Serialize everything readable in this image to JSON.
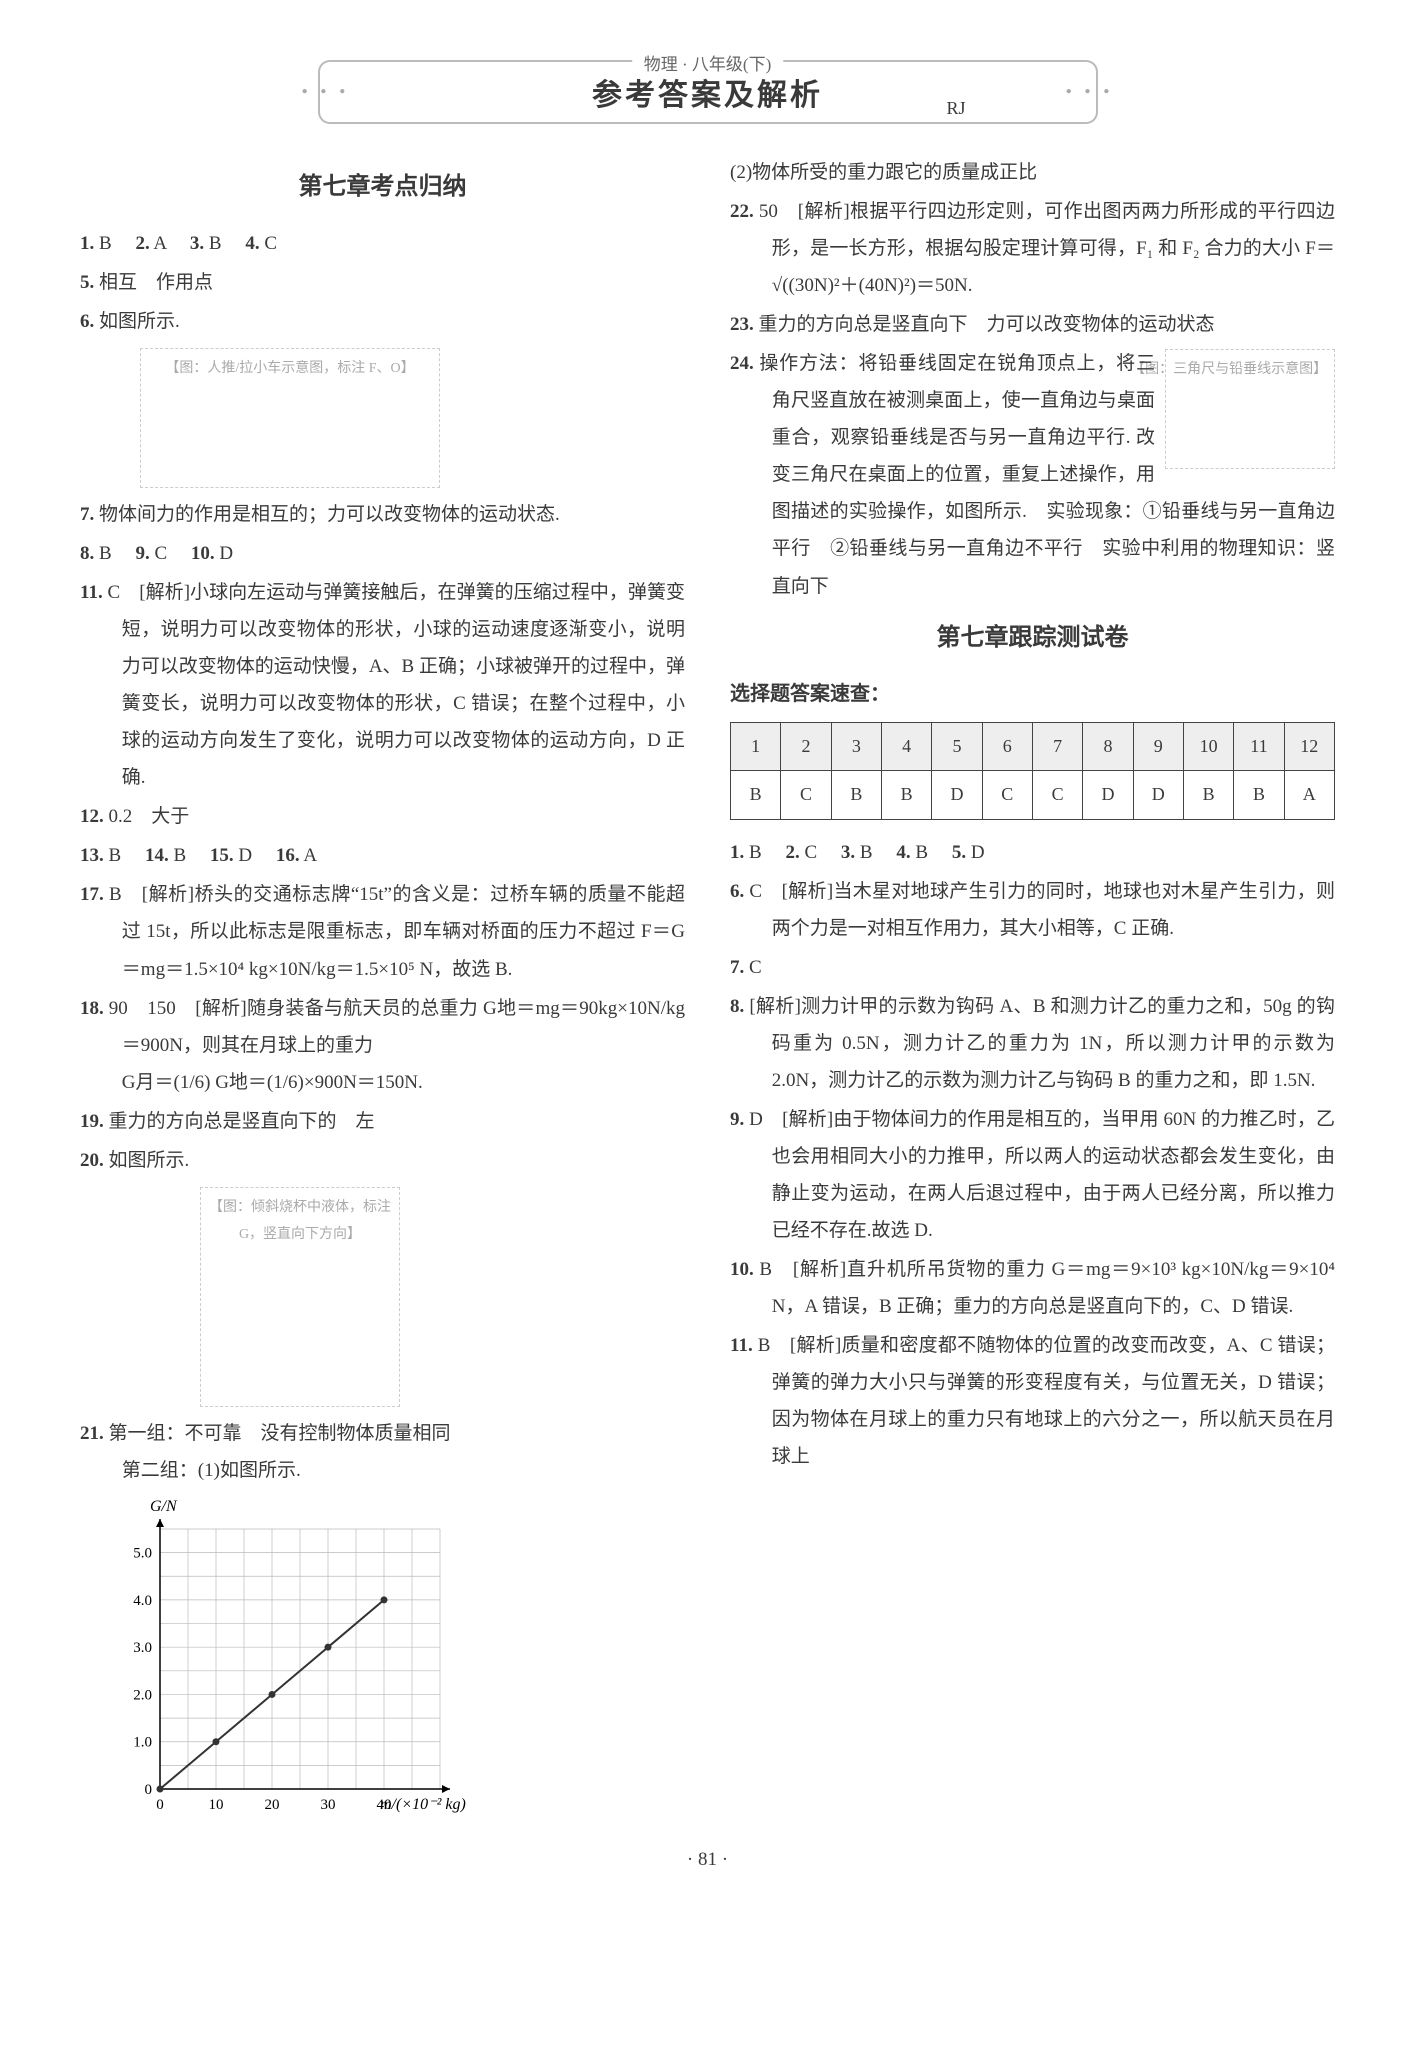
{
  "colors": {
    "text": "#3a3a3a",
    "border": "#bbbbbb",
    "grid": "#eeeeee",
    "background": "#ffffff"
  },
  "header": {
    "subject": "物理 · 八年级(下)",
    "title": "参考答案及解析",
    "edition": "RJ"
  },
  "left": {
    "section_title": "第七章考点归纳",
    "line1": {
      "a1n": "1.",
      "a1": "B",
      "a2n": "2.",
      "a2": "A",
      "a3n": "3.",
      "a3": "B",
      "a4n": "4.",
      "a4": "C"
    },
    "l5": {
      "n": "5.",
      "t": "相互　作用点"
    },
    "l6": {
      "n": "6.",
      "t": "如图所示."
    },
    "fig_cart": "【图：人推/拉小车示意图，标注 F、O】",
    "l7": {
      "n": "7.",
      "t": "物体间力的作用是相互的；力可以改变物体的运动状态."
    },
    "line8": {
      "a1n": "8.",
      "a1": "B",
      "a2n": "9.",
      "a2": "C",
      "a3n": "10.",
      "a3": "D"
    },
    "l11": {
      "n": "11.",
      "t": "C　[解析]小球向左运动与弹簧接触后，在弹簧的压缩过程中，弹簧变短，说明力可以改变物体的形状，小球的运动速度逐渐变小，说明力可以改变物体的运动快慢，A、B 正确；小球被弹开的过程中，弹簧变长，说明力可以改变物体的形状，C 错误；在整个过程中，小球的运动方向发生了变化，说明力可以改变物体的运动方向，D 正确."
    },
    "l12": {
      "n": "12.",
      "t": "0.2　大于"
    },
    "line13": {
      "a1n": "13.",
      "a1": "B",
      "a2n": "14.",
      "a2": "B",
      "a3n": "15.",
      "a3": "D",
      "a4n": "16.",
      "a4": "A"
    },
    "l17": {
      "n": "17.",
      "t": "B　[解析]桥头的交通标志牌“15t”的含义是：过桥车辆的质量不能超过 15t，所以此标志是限重标志，即车辆对桥面的压力不超过 F＝G＝mg＝1.5×10⁴ kg×10N/kg＝1.5×10⁵ N，故选 B."
    },
    "l18": {
      "n": "18.",
      "pre": "90　150　[解析]随身装备与航天员的总重力 G地＝mg＝90kg×10N/kg＝900N，则其在月球上的重力",
      "frac": "G月＝(1/6) G地＝(1/6)×900N＝150N."
    },
    "l19": {
      "n": "19.",
      "t": "重力的方向总是竖直向下的　左"
    },
    "l20": {
      "n": "20.",
      "t": "如图所示."
    },
    "fig_beaker": "【图：倾斜烧杯中液体，标注 G，竖直向下方向】",
    "l21": {
      "n": "21.",
      "a": "第一组：不可靠　没有控制物体质量相同",
      "b": "第二组：(1)如图所示."
    },
    "graph": {
      "ylabel": "G/N",
      "xlabel": "m/(×10⁻² kg)",
      "yticks": [
        "0",
        "1.0",
        "2.0",
        "3.0",
        "4.0",
        "5.0"
      ],
      "xticks": [
        "0",
        "10",
        "20",
        "30",
        "40"
      ],
      "xlim": [
        0,
        50
      ],
      "ylim": [
        0,
        5.5
      ],
      "line_color": "#333333",
      "grid_color": "#bbbbbb",
      "points": [
        [
          0,
          0
        ],
        [
          10,
          1.0
        ],
        [
          20,
          2.0
        ],
        [
          30,
          3.0
        ],
        [
          40,
          4.0
        ]
      ]
    }
  },
  "right": {
    "p1": "(2)物体所受的重力跟它的质量成正比",
    "l22": {
      "n": "22.",
      "t": "50　[解析]根据平行四边形定则，可作出图丙两力所形成的平行四边形，是一长方形，根据勾股定理计算可得，F₁ 和 F₂ 合力的大小 F＝√((30N)²＋(40N)²)＝50N."
    },
    "l23": {
      "n": "23.",
      "t": "重力的方向总是竖直向下　力可以改变物体的运动状态"
    },
    "l24": {
      "n": "24.",
      "pre": "操作方法：将铅垂线固定在锐角顶点上，将三角尺竖直放在被测桌面上，使一直角边与桌面重合，观察铅垂线是否与另一直角边平行.",
      "post": "改变三角尺在桌面上的位置，重复上述操作，用图描述的实验操作，如图所示.　实验现象：①铅垂线与另一直角边平行　②铅垂线与另一直角边不平行　实验中利用的物理知识：竖直向下"
    },
    "fig_tri": "【图：三角尺与铅垂线示意图】",
    "section2_title": "第七章跟踪测试卷",
    "table_head": "选择题答案速查：",
    "table": {
      "nums": [
        "1",
        "2",
        "3",
        "4",
        "5",
        "6",
        "7",
        "8",
        "9",
        "10",
        "11",
        "12"
      ],
      "ans": [
        "B",
        "C",
        "B",
        "B",
        "D",
        "C",
        "C",
        "D",
        "D",
        "B",
        "B",
        "A"
      ]
    },
    "lineA": {
      "a1n": "1.",
      "a1": "B",
      "a2n": "2.",
      "a2": "C",
      "a3n": "3.",
      "a3": "B",
      "a4n": "4.",
      "a4": "B",
      "a5n": "5.",
      "a5": "D"
    },
    "l6r": {
      "n": "6.",
      "t": "C　[解析]当木星对地球产生引力的同时，地球也对木星产生引力，则两个力是一对相互作用力，其大小相等，C 正确."
    },
    "l7r": {
      "n": "7.",
      "t": "C"
    },
    "l8r": {
      "n": "8.",
      "t": "[解析]测力计甲的示数为钩码 A、B 和测力计乙的重力之和，50g 的钩码重为 0.5N，测力计乙的重力为 1N，所以测力计甲的示数为 2.0N，测力计乙的示数为测力计乙与钩码 B 的重力之和，即 1.5N."
    },
    "l9r": {
      "n": "9.",
      "t": "D　[解析]由于物体间力的作用是相互的，当甲用 60N 的力推乙时，乙也会用相同大小的力推甲，所以两人的运动状态都会发生变化，由静止变为运动，在两人后退过程中，由于两人已经分离，所以推力已经不存在.故选 D."
    },
    "l10r": {
      "n": "10.",
      "t": "B　[解析]直升机所吊货物的重力 G＝mg＝9×10³ kg×10N/kg＝9×10⁴ N，A 错误，B 正确；重力的方向总是竖直向下的，C、D 错误."
    },
    "l11r": {
      "n": "11.",
      "t": "B　[解析]质量和密度都不随物体的位置的改变而改变，A、C 错误；弹簧的弹力大小只与弹簧的形变程度有关，与位置无关，D 错误；因为物体在月球上的重力只有地球上的六分之一，所以航天员在月球上"
    }
  },
  "footer": "· 81 ·"
}
